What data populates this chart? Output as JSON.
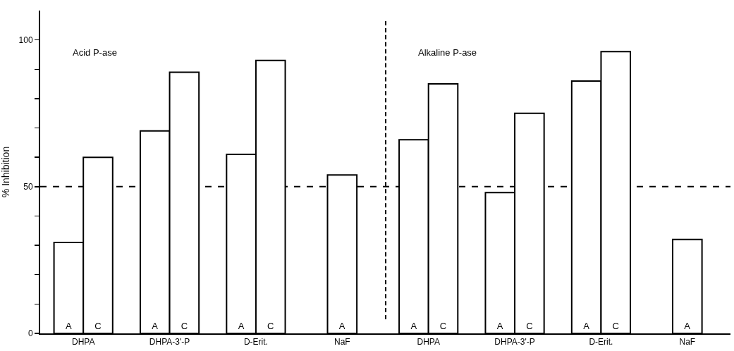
{
  "chart_data": {
    "type": "bar",
    "ylabel": "% Inhibition",
    "annotations": [
      "Acid P-ase",
      "Alkaline P-ase"
    ],
    "categories": [
      "DHPA",
      "DHPA-3'-P",
      "D-Erit.",
      "NaF",
      "DHPA",
      "DHPA-3'-P",
      "D-Erit.",
      "NaF"
    ],
    "series": [
      {
        "name": "A",
        "color": "#ffffff",
        "values": [
          31,
          69,
          61,
          54,
          66,
          48,
          86,
          32
        ]
      },
      {
        "name": "C",
        "color": "#ffffff",
        "values": [
          60,
          89,
          93,
          null,
          85,
          75,
          96,
          null
        ]
      }
    ],
    "ylim": [
      0,
      110
    ],
    "yticks": [
      0,
      {
        "value": 10,
        "label": null
      },
      {
        "value": 20,
        "label": null
      },
      {
        "value": 30,
        "label": null
      },
      {
        "value": 40,
        "label": null
      },
      50,
      {
        "value": 60,
        "label": null
      },
      {
        "value": 70,
        "label": null
      },
      {
        "value": 80,
        "label": null
      },
      {
        "value": 90,
        "label": null
      },
      100
    ],
    "ref_lines": [
      {
        "axis": "y",
        "value": 50,
        "label": null,
        "line_style": "dashed",
        "color": "#000000"
      }
    ],
    "grid": false,
    "legend": false
  }
}
